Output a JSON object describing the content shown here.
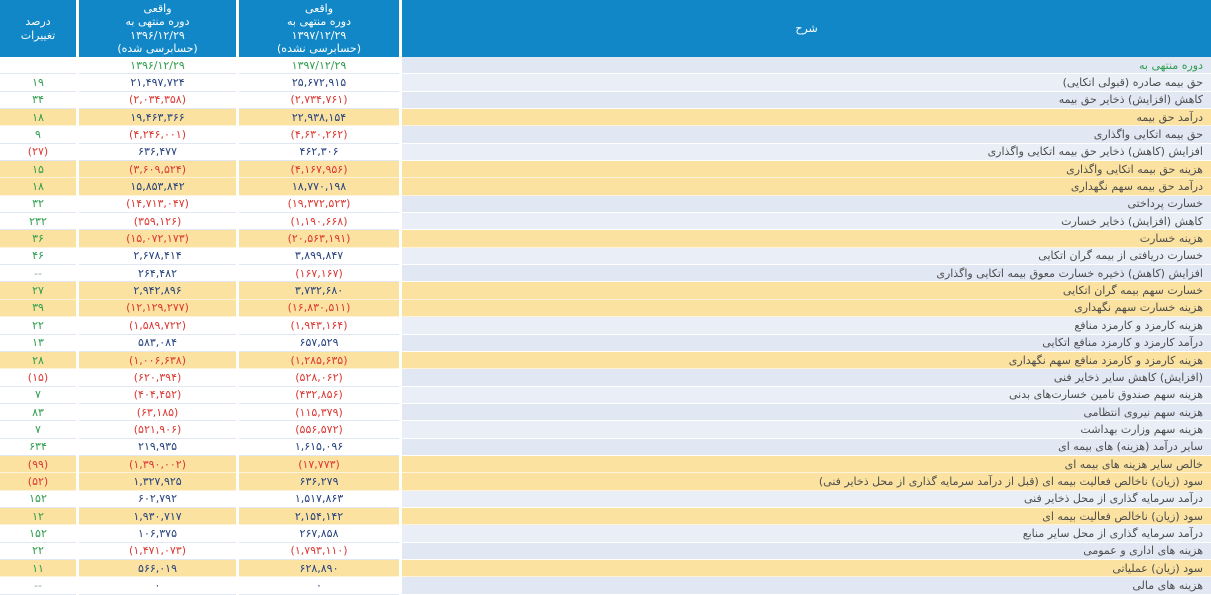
{
  "colors": {
    "header_blue": "#1187c7",
    "highlight_tan": "#fbe2a0",
    "row_lavender": "#e1e7f3",
    "value_navy": "#27437f",
    "negative_red": "#dc3a34",
    "positive_green": "#2f9e4e"
  },
  "header": {
    "description": "شرح",
    "col_1397": "واقعی\nدوره منتهی به\n۱۳۹۷/۱۲/۲۹\n(حسابرسی نشده)",
    "col_1396": "واقعی\nدوره منتهی به\n۱۳۹۶/۱۲/۲۹\n(حسابرسی شده)",
    "percent": "درصد\nتغییرات"
  },
  "rows": [
    {
      "label": "دوره منتهی به",
      "v97": "۱۳۹۷/۱۲/۲۹",
      "v96": "۱۳۹۶/۱۲/۲۹",
      "pct": "",
      "hl": false,
      "green": true
    },
    {
      "label": "حق بیمه صادره (قبولی اتکایی)",
      "v97": "۲۵,۶۷۲,۹۱۵",
      "v96": "۲۱,۴۹۷,۷۲۴",
      "pct": "۱۹",
      "hl": false,
      "green": false
    },
    {
      "label": "کاهش (افزایش) ذخایر حق بیمه",
      "v97": "(۲,۷۳۴,۷۶۱)",
      "v96": "(۲,۰۳۴,۳۵۸)",
      "pct": "۳۴",
      "hl": false,
      "green": false
    },
    {
      "label": "درآمد حق بیمه",
      "v97": "۲۲,۹۳۸,۱۵۴",
      "v96": "۱۹,۴۶۳,۳۶۶",
      "pct": "۱۸",
      "hl": true,
      "green": false
    },
    {
      "label": "حق بیمه اتکایی واگذاری",
      "v97": "(۴,۶۳۰,۲۶۲)",
      "v96": "(۴,۲۴۶,۰۰۱)",
      "pct": "۹",
      "hl": false,
      "green": false
    },
    {
      "label": "افزایش (کاهش) ذخایر حق بیمه اتکایی واگذاری",
      "v97": "۴۶۲,۳۰۶",
      "v96": "۶۳۶,۴۷۷",
      "pct": "(۲۷)",
      "hl": false,
      "green": false
    },
    {
      "label": "هزینه حق بیمه اتکایی واگذاری",
      "v97": "(۴,۱۶۷,۹۵۶)",
      "v96": "(۳,۶۰۹,۵۲۴)",
      "pct": "۱۵",
      "hl": true,
      "green": false
    },
    {
      "label": "درآمد حق بیمه سهم نگهداری",
      "v97": "۱۸,۷۷۰,۱۹۸",
      "v96": "۱۵,۸۵۳,۸۴۲",
      "pct": "۱۸",
      "hl": true,
      "green": false
    },
    {
      "label": "خسارت پرداختی",
      "v97": "(۱۹,۳۷۲,۵۲۳)",
      "v96": "(۱۴,۷۱۳,۰۴۷)",
      "pct": "۳۲",
      "hl": false,
      "green": false
    },
    {
      "label": "کاهش (افزایش) ذخایر خسارت",
      "v97": "(۱,۱۹۰,۶۶۸)",
      "v96": "(۳۵۹,۱۲۶)",
      "pct": "۲۳۲",
      "hl": false,
      "green": false
    },
    {
      "label": "هزینه خسارت",
      "v97": "(۲۰,۵۶۳,۱۹۱)",
      "v96": "(۱۵,۰۷۲,۱۷۳)",
      "pct": "۳۶",
      "hl": true,
      "green": false
    },
    {
      "label": "خسارت دریافتی از بیمه گران اتکایی",
      "v97": "۳,۸۹۹,۸۴۷",
      "v96": "۲,۶۷۸,۴۱۴",
      "pct": "۴۶",
      "hl": false,
      "green": false
    },
    {
      "label": "افزایش (کاهش) ذخیره خسارت معوق بیمه اتکایی واگذاری",
      "v97": "(۱۶۷,۱۶۷)",
      "v96": "۲۶۴,۴۸۲",
      "pct": "--",
      "hl": false,
      "green": false
    },
    {
      "label": "خسارت سهم بیمه گران اتکایی",
      "v97": "۳,۷۳۲,۶۸۰",
      "v96": "۲,۹۴۲,۸۹۶",
      "pct": "۲۷",
      "hl": true,
      "green": false
    },
    {
      "label": "هزینه خسارت سهم نگهداری",
      "v97": "(۱۶,۸۳۰,۵۱۱)",
      "v96": "(۱۲,۱۲۹,۲۷۷)",
      "pct": "۳۹",
      "hl": true,
      "green": false
    },
    {
      "label": "هزینه کارمزد و کارمزد منافع",
      "v97": "(۱,۹۴۳,۱۶۴)",
      "v96": "(۱,۵۸۹,۷۲۲)",
      "pct": "۲۲",
      "hl": false,
      "green": false
    },
    {
      "label": "درآمد کارمزد و کارمزد منافع اتکایی",
      "v97": "۶۵۷,۵۲۹",
      "v96": "۵۸۳,۰۸۴",
      "pct": "۱۳",
      "hl": false,
      "green": false
    },
    {
      "label": "هزینه کارمزد و کارمزد منافع سهم نگهداری",
      "v97": "(۱,۲۸۵,۶۳۵)",
      "v96": "(۱,۰۰۶,۶۳۸)",
      "pct": "۲۸",
      "hl": true,
      "green": false
    },
    {
      "label": "(افزایش) کاهش سایر ذخایر فنی",
      "v97": "(۵۲۸,۰۶۲)",
      "v96": "(۶۲۰,۳۹۴)",
      "pct": "(۱۵)",
      "hl": false,
      "green": false
    },
    {
      "label": "هزینه سهم صندوق تامین خسارت‌های بدنی",
      "v97": "(۴۳۲,۸۵۶)",
      "v96": "(۴۰۴,۴۵۲)",
      "pct": "۷",
      "hl": false,
      "green": false
    },
    {
      "label": "هزینه سهم نیروی انتظامی",
      "v97": "(۱۱۵,۳۷۹)",
      "v96": "(۶۳,۱۸۵)",
      "pct": "۸۳",
      "hl": false,
      "green": false
    },
    {
      "label": "هزینه سهم وزارت بهداشت",
      "v97": "(۵۵۶,۵۷۲)",
      "v96": "(۵۲۱,۹۰۶)",
      "pct": "۷",
      "hl": false,
      "green": false
    },
    {
      "label": "سایر درآمد (هزینه) های بیمه ای",
      "v97": "۱,۶۱۵,۰۹۶",
      "v96": "۲۱۹,۹۳۵",
      "pct": "۶۳۴",
      "hl": false,
      "green": false
    },
    {
      "label": "خالص سایر هزینه های بیمه ای",
      "v97": "(۱۷,۷۷۳)",
      "v96": "(۱,۳۹۰,۰۰۲)",
      "pct": "(۹۹)",
      "hl": true,
      "green": false
    },
    {
      "label": "سود (زیان) ناخالص فعالیت بیمه ای (قبل از درآمد سرمایه گذاری از محل ذخایر فنی)",
      "v97": "۶۳۶,۲۷۹",
      "v96": "۱,۳۲۷,۹۲۵",
      "pct": "(۵۲)",
      "hl": true,
      "green": false
    },
    {
      "label": "درآمد سرمایه گذاری از محل ذخایر فنی",
      "v97": "۱,۵۱۷,۸۶۳",
      "v96": "۶۰۲,۷۹۲",
      "pct": "۱۵۲",
      "hl": false,
      "green": false
    },
    {
      "label": "سود (زیان) ناخالص فعالیت بیمه ای",
      "v97": "۲,۱۵۴,۱۴۲",
      "v96": "۱,۹۳۰,۷۱۷",
      "pct": "۱۲",
      "hl": true,
      "green": false
    },
    {
      "label": "درآمد سرمایه گذاری از محل سایر منابع",
      "v97": "۲۶۷,۸۵۸",
      "v96": "۱۰۶,۳۷۵",
      "pct": "۱۵۲",
      "hl": false,
      "green": false
    },
    {
      "label": "هزینه های اداری و عمومی",
      "v97": "(۱,۷۹۳,۱۱۰)",
      "v96": "(۱,۴۷۱,۰۷۳)",
      "pct": "۲۲",
      "hl": false,
      "green": false
    },
    {
      "label": "سود (زیان) عملیاتی",
      "v97": "۶۲۸,۸۹۰",
      "v96": "۵۶۶,۰۱۹",
      "pct": "۱۱",
      "hl": true,
      "green": false
    },
    {
      "label": "هزینه های مالی",
      "v97": "۰",
      "v96": "۰",
      "pct": "--",
      "hl": false,
      "green": false
    }
  ]
}
